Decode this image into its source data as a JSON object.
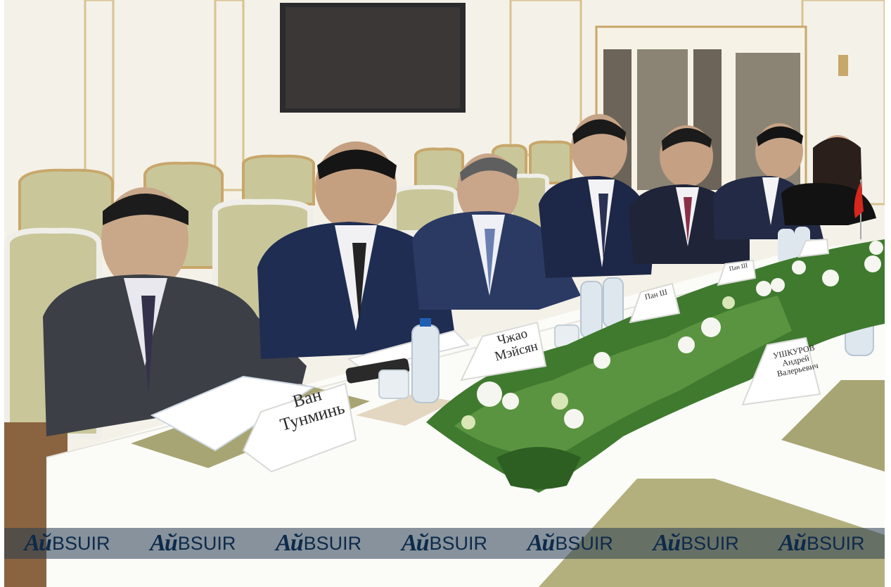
{
  "photo": {
    "description_alt": "",
    "name_cards": [
      {
        "id": "card-wang",
        "lines": [
          "Ван",
          "Тунминь"
        ]
      },
      {
        "id": "card-zhao",
        "lines": [
          "Чжао",
          "Мэйсян"
        ]
      },
      {
        "id": "card-pan",
        "lines": [
          "Пан Ш"
        ]
      },
      {
        "id": "card-pan2",
        "lines": [
          "Пан Ш"
        ]
      },
      {
        "id": "card-ushkurov",
        "lines": [
          "УШКУРОВ",
          "Андрей",
          "Валерьевич"
        ]
      }
    ],
    "watermark": {
      "logo": "Aй",
      "text": "BSUIR",
      "repeat": 7
    },
    "colors": {
      "wall": "#f4f1e8",
      "gold_trim": "#c8a76a",
      "chair_fabric": "#c9c79a",
      "table": "#fbfbf8",
      "placemat": "#a8a574",
      "suit_navy": "#1f2d52",
      "suit_grey": "#3c3f46",
      "greenery": "#3f7a2f",
      "watermark_band": "#2c4660"
    }
  }
}
